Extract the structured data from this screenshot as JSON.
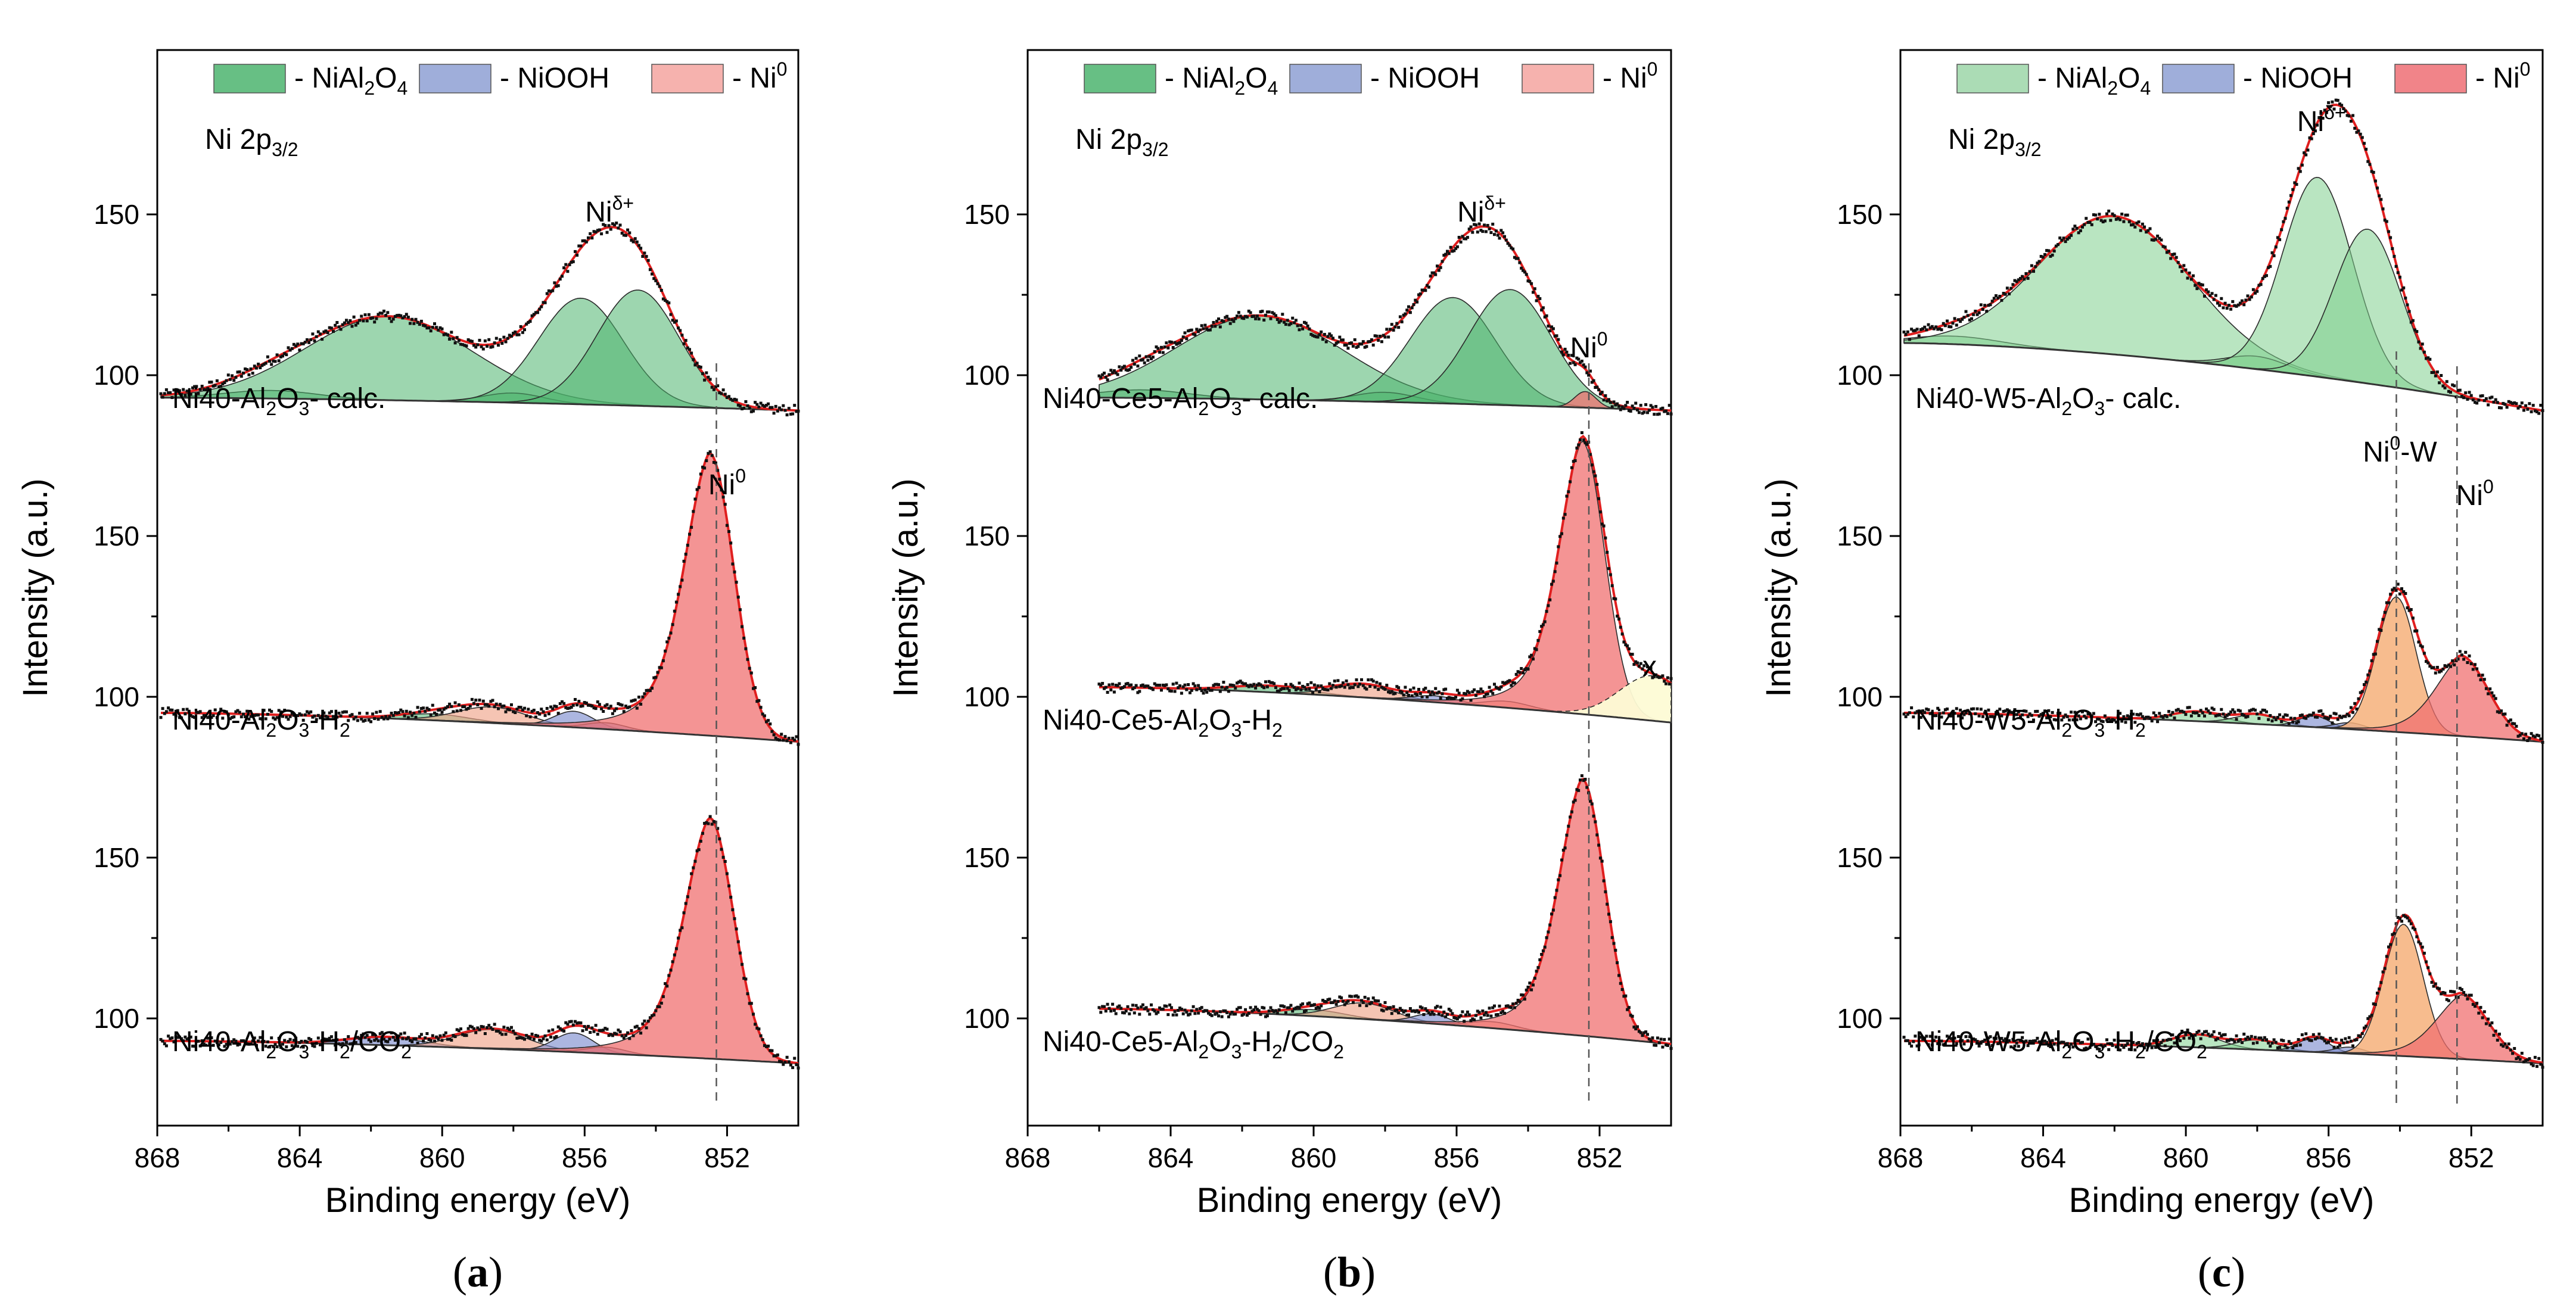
{
  "chart_data": [
    {
      "type": "area",
      "panel": "a",
      "panel_label": "a",
      "xlabel": "Binding energy (eV)",
      "ylabel": "Intensity (a.u.)",
      "xlim": [
        868,
        850
      ],
      "xticks": [
        868,
        864,
        860,
        856,
        852
      ],
      "legend": [
        {
          "name": "- NiAl",
          "sub": "2",
          "mid": "O",
          "sub2": "4",
          "color": "#4cb46e",
          "alpha": 0.85
        },
        {
          "name": "- NiOOH",
          "color": "#8ea0d4",
          "alpha": 0.85
        },
        {
          "name": "- Ni",
          "sup": "0",
          "color": "#f4a5a0",
          "alpha": 0.85
        }
      ],
      "region_label": {
        "main": "Ni 2p",
        "sub": "3/2"
      },
      "peak_labels": [
        {
          "text": "Ni",
          "sup": "δ+",
          "x": 855.3,
          "trace": 0
        },
        {
          "text": "Ni",
          "sup": "0",
          "x": 852.0,
          "trace": 1
        }
      ],
      "traces": [
        {
          "label_main": "Ni40-Al",
          "label_parts": [
            "Ni40-Al",
            "2",
            "O",
            "3",
            "- calc."
          ],
          "yticks": [
            100,
            150
          ],
          "ymin": 90,
          "ymax": 175,
          "xrange": [
            867.9,
            850
          ],
          "baseline": {
            "start": 93,
            "end": 89
          },
          "components": [
            {
              "type": "NiAl2O4",
              "center": 864.8,
              "height": 2.5,
              "fwhm": 3.0
            },
            {
              "type": "NiAl2O4",
              "center": 861.5,
              "height": 26,
              "fwhm": 5.5
            },
            {
              "type": "NiAl2O4",
              "center": 858.0,
              "height": 3,
              "fwhm": 2.0
            },
            {
              "type": "NiAl2O4",
              "center": 856.1,
              "height": 33,
              "fwhm": 2.8
            },
            {
              "type": "NiAl2O4",
              "center": 854.5,
              "height": 36,
              "fwhm": 2.7
            }
          ],
          "guide_x": 852.3
        },
        {
          "label_parts": [
            "Ni40-Al",
            "2",
            "O",
            "3",
            "-H",
            "2",
            ""
          ],
          "yticks": [
            100,
            150
          ],
          "ymin": 85,
          "ymax": 182,
          "xrange": [
            867.9,
            850
          ],
          "baseline": {
            "start": 95,
            "end": 86
          },
          "components": [
            {
              "type": "NiAl2O4",
              "center": 860.2,
              "height": 2,
              "fwhm": 2.2
            },
            {
              "type": "sat",
              "center": 858.6,
              "height": 5,
              "fwhm": 2.3
            },
            {
              "type": "NiOOH",
              "center": 856.3,
              "height": 5,
              "fwhm": 1.3
            },
            {
              "type": "NiOOH",
              "center": 855.4,
              "height": 2,
              "fwhm": 1.3
            },
            {
              "type": "Ni0",
              "center": 852.5,
              "height": 88,
              "fwhm": 1.6,
              "tail": 3.0
            }
          ],
          "guide_x": 852.3
        },
        {
          "label_parts": [
            "Ni40-Al",
            "2",
            "O",
            "3",
            "-H",
            "2",
            "/CO",
            "2"
          ],
          "yticks": [
            100,
            150
          ],
          "ymin": 85,
          "ymax": 178,
          "xrange": [
            867.9,
            850
          ],
          "baseline": {
            "start": 93,
            "end": 86
          },
          "components": [
            {
              "type": "NiOOH",
              "center": 861.6,
              "height": 2.5,
              "fwhm": 2.5
            },
            {
              "type": "sat",
              "center": 858.6,
              "height": 6,
              "fwhm": 2.3
            },
            {
              "type": "NiOOH",
              "center": 856.3,
              "height": 6,
              "fwhm": 1.3
            },
            {
              "type": "NiOOH",
              "center": 855.4,
              "height": 2,
              "fwhm": 1.3
            },
            {
              "type": "Ni0",
              "center": 852.5,
              "height": 75,
              "fwhm": 1.6,
              "tail": 3.0
            }
          ],
          "guide_x": 852.3
        }
      ]
    },
    {
      "type": "area",
      "panel": "b",
      "panel_label": "b",
      "xlabel": "Binding energy (eV)",
      "ylabel": "Intensity (a.u.)",
      "xlim": [
        868,
        850
      ],
      "xticks": [
        868,
        864,
        860,
        856,
        852
      ],
      "legend": [
        {
          "name": "- NiAl",
          "sub": "2",
          "mid": "O",
          "sub2": "4",
          "color": "#4cb46e",
          "alpha": 0.85
        },
        {
          "name": "- NiOOH",
          "color": "#8ea0d4",
          "alpha": 0.85
        },
        {
          "name": "- Ni",
          "sup": "0",
          "color": "#f4a5a0",
          "alpha": 0.85
        }
      ],
      "region_label": {
        "main": "Ni 2p",
        "sub": "3/2"
      },
      "peak_labels": [
        {
          "text": "Ni",
          "sup": "δ+",
          "x": 855.3,
          "trace": 0
        },
        {
          "text": "Ni",
          "sup": "0",
          "x": 852.3,
          "trace": 0,
          "low": true
        },
        {
          "text": "x",
          "x": 850.6,
          "trace": 1,
          "plain": true
        }
      ],
      "traces": [
        {
          "label_parts": [
            "Ni40-Ce5-Al",
            "2",
            "O",
            "3",
            "- calc."
          ],
          "yticks": [
            100,
            150
          ],
          "ymin": 90,
          "ymax": 175,
          "xrange": [
            866.0,
            850
          ],
          "baseline": {
            "start": 93,
            "end": 89
          },
          "components": [
            {
              "type": "NiAl2O4",
              "center": 864.8,
              "height": 2.5,
              "fwhm": 3.0
            },
            {
              "type": "NiAl2O4",
              "center": 861.5,
              "height": 26,
              "fwhm": 5.5
            },
            {
              "type": "NiAl2O4",
              "center": 858.0,
              "height": 3,
              "fwhm": 2.0
            },
            {
              "type": "NiAl2O4",
              "center": 856.1,
              "height": 33,
              "fwhm": 2.8
            },
            {
              "type": "NiAl2O4",
              "center": 854.5,
              "height": 36,
              "fwhm": 2.7
            },
            {
              "type": "Ni0",
              "center": 852.4,
              "height": 5,
              "fwhm": 0.7
            }
          ],
          "guide_x": 852.3
        },
        {
          "label_parts": [
            "Ni40-Ce5-Al",
            "2",
            "O",
            "3",
            "-H",
            "2",
            ""
          ],
          "yticks": [
            100,
            150
          ],
          "ymin": 85,
          "ymax": 182,
          "xrange": [
            866.0,
            850
          ],
          "baseline": {
            "start": 103,
            "end": 92
          },
          "components": [
            {
              "type": "NiAl2O4",
              "center": 861.2,
              "height": 2,
              "fwhm": 2.5
            },
            {
              "type": "sat",
              "center": 858.6,
              "height": 4,
              "fwhm": 2.0
            },
            {
              "type": "NiOOH",
              "center": 856.6,
              "height": 2,
              "fwhm": 1.5
            },
            {
              "type": "sat",
              "center": 854.6,
              "height": 2,
              "fwhm": 1.5
            },
            {
              "type": "Ni0",
              "center": 852.5,
              "height": 85,
              "fwhm": 1.5,
              "tail": 2.4
            },
            {
              "type": "x",
              "center": 850.5,
              "height": 14,
              "fwhm": 2.2
            }
          ],
          "guide_x": 852.3
        },
        {
          "label_parts": [
            "Ni40-Ce5-Al",
            "2",
            "O",
            "3",
            "-H",
            "2",
            "/CO",
            "2"
          ],
          "yticks": [
            100,
            150
          ],
          "ymin": 85,
          "ymax": 178,
          "xrange": [
            866.0,
            850
          ],
          "baseline": {
            "start": 103,
            "end": 92
          },
          "components": [
            {
              "type": "NiAl2O4",
              "center": 860.0,
              "height": 2,
              "fwhm": 2.0
            },
            {
              "type": "sat",
              "center": 858.6,
              "height": 5,
              "fwhm": 2.0
            },
            {
              "type": "NiOOH",
              "center": 856.7,
              "height": 3,
              "fwhm": 1.2
            },
            {
              "type": "sat",
              "center": 855.0,
              "height": 2,
              "fwhm": 1.5
            },
            {
              "type": "Ni0",
              "center": 852.5,
              "height": 80,
              "fwhm": 1.5,
              "tail": 2.4
            }
          ],
          "guide_x": 852.3
        }
      ]
    },
    {
      "type": "area",
      "panel": "c",
      "panel_label": "c",
      "xlabel": "Binding energy (eV)",
      "ylabel": "Intensity (a.u.)",
      "xlim": [
        868,
        850
      ],
      "xticks": [
        868,
        864,
        860,
        856,
        852
      ],
      "legend": [
        {
          "name": "- NiAl",
          "sub": "2",
          "mid": "O",
          "sub2": "4",
          "color": "#9cd6a8",
          "alpha": 0.85
        },
        {
          "name": "- NiOOH",
          "color": "#8ea0d4",
          "alpha": 0.85
        },
        {
          "name": "- Ni",
          "sup": "0",
          "color": "#ef6e74",
          "alpha": 0.85
        }
      ],
      "region_label": {
        "main": "Ni 2p",
        "sub": "3/2"
      },
      "peak_labels": [
        {
          "text": "Ni",
          "sup": "δ+",
          "x": 856.2,
          "trace": 0
        },
        {
          "text": "Ni",
          "sup": "0",
          "x": 854.0,
          "trace": 1,
          "suffix": "-W"
        },
        {
          "text": "Ni",
          "sup": "0",
          "x": 851.9,
          "trace": 1
        }
      ],
      "traces": [
        {
          "label_parts": [
            "Ni40-W5-Al",
            "2",
            "O",
            "3",
            "- calc."
          ],
          "yticks": [
            100,
            150
          ],
          "ymin": 90,
          "ymax": 175,
          "xrange": [
            867.9,
            850
          ],
          "baseline": {
            "start": 110,
            "end": 89
          },
          "components": [
            {
              "type": "NiAl2O4",
              "center": 866.5,
              "height": 2.5,
              "fwhm": 3.0
            },
            {
              "type": "NiAl2O4",
              "center": 862.0,
              "height": 43,
              "fwhm": 5.0
            },
            {
              "type": "NiAl2O4",
              "center": 858.0,
              "height": 4,
              "fwhm": 2.0
            },
            {
              "type": "NiAl2O4",
              "center": 856.3,
              "height": 62,
              "fwhm": 2.3
            },
            {
              "type": "NiAl2O4",
              "center": 854.9,
              "height": 48,
              "fwhm": 2.2
            }
          ],
          "guide_x": 854.1
        },
        {
          "label_parts": [
            "Ni40-W5-Al",
            "2",
            "O",
            "3",
            "-H",
            "2",
            ""
          ],
          "yticks": [
            100,
            150
          ],
          "ymin": 85,
          "ymax": 182,
          "xrange": [
            867.9,
            850
          ],
          "baseline": {
            "start": 95,
            "end": 86
          },
          "components": [
            {
              "type": "NiAl2O4",
              "center": 859.7,
              "height": 3,
              "fwhm": 1.6
            },
            {
              "type": "NiAl2O4",
              "center": 858.0,
              "height": 3,
              "fwhm": 1.4
            },
            {
              "type": "NiOOH",
              "center": 856.4,
              "height": 3.5,
              "fwhm": 1.0
            },
            {
              "type": "NiOOH",
              "center": 855.4,
              "height": 2,
              "fwhm": 1.0
            },
            {
              "type": "W",
              "center": 854.1,
              "height": 42,
              "fwhm": 1.3
            },
            {
              "type": "Ni0",
              "center": 852.3,
              "height": 25,
              "fwhm": 1.8,
              "tail": 1.6
            }
          ],
          "guide_x": 854.1,
          "guide_x2": 852.4
        },
        {
          "label_parts": [
            "Ni40-W5-Al",
            "2",
            "O",
            "3",
            "-H",
            "2",
            "/CO",
            "2"
          ],
          "yticks": [
            100,
            150
          ],
          "ymin": 85,
          "ymax": 178,
          "xrange": [
            867.9,
            850
          ],
          "baseline": {
            "start": 93,
            "end": 86
          },
          "components": [
            {
              "type": "NiAl2O4",
              "center": 859.7,
              "height": 4,
              "fwhm": 1.6
            },
            {
              "type": "NiAl2O4",
              "center": 858.0,
              "height": 3,
              "fwhm": 1.4
            },
            {
              "type": "NiOOH",
              "center": 856.4,
              "height": 4.5,
              "fwhm": 1.0
            },
            {
              "type": "NiOOH",
              "center": 855.4,
              "height": 2,
              "fwhm": 1.0
            },
            {
              "type": "W",
              "center": 853.9,
              "height": 41,
              "fwhm": 1.3
            },
            {
              "type": "Ni0",
              "center": 852.3,
              "height": 20,
              "fwhm": 1.8,
              "tail": 1.6
            }
          ],
          "guide_x": 854.1,
          "guide_x2": 852.4
        }
      ]
    }
  ]
}
